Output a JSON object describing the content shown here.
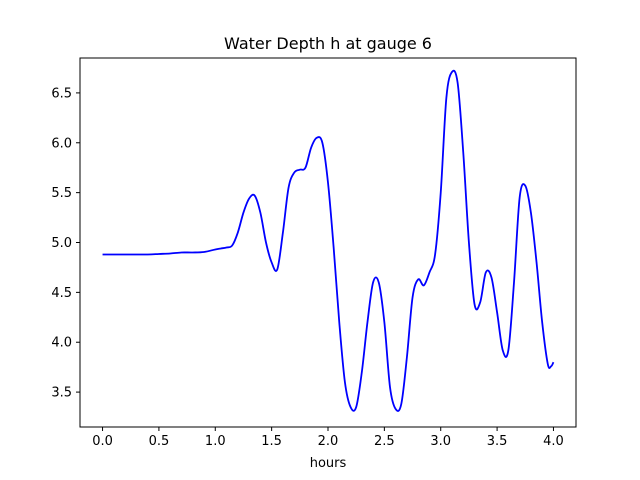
{
  "chart_data": {
    "type": "line",
    "title": "Water Depth h at gauge 6",
    "xlabel": "hours",
    "ylabel": "",
    "xlim": [
      -0.2,
      4.2
    ],
    "ylim": [
      3.15,
      6.85
    ],
    "x_ticks": [
      0.0,
      0.5,
      1.0,
      1.5,
      2.0,
      2.5,
      3.0,
      3.5,
      4.0
    ],
    "x_tick_labels": [
      "0.0",
      "0.5",
      "1.0",
      "1.5",
      "2.0",
      "2.5",
      "3.0",
      "3.5",
      "4.0"
    ],
    "y_ticks": [
      3.5,
      4.0,
      4.5,
      5.0,
      5.5,
      6.0,
      6.5
    ],
    "y_tick_labels": [
      "3.5",
      "4.0",
      "4.5",
      "5.0",
      "5.5",
      "6.0",
      "6.5"
    ],
    "grid": false,
    "series": [
      {
        "color": "#0000ff",
        "x": [
          0.0,
          0.2,
          0.4,
          0.5,
          0.6,
          0.7,
          0.8,
          0.9,
          1.0,
          1.05,
          1.1,
          1.15,
          1.2,
          1.25,
          1.3,
          1.35,
          1.4,
          1.45,
          1.5,
          1.55,
          1.6,
          1.65,
          1.7,
          1.75,
          1.8,
          1.85,
          1.9,
          1.95,
          2.0,
          2.05,
          2.1,
          2.15,
          2.2,
          2.25,
          2.3,
          2.35,
          2.4,
          2.45,
          2.5,
          2.55,
          2.6,
          2.65,
          2.7,
          2.75,
          2.8,
          2.85,
          2.9,
          2.95,
          3.0,
          3.05,
          3.1,
          3.15,
          3.2,
          3.25,
          3.3,
          3.35,
          3.4,
          3.45,
          3.5,
          3.55,
          3.6,
          3.65,
          3.7,
          3.75,
          3.8,
          3.85,
          3.9,
          3.95,
          3.98,
          4.0
        ],
        "y": [
          4.88,
          4.88,
          4.88,
          4.885,
          4.89,
          4.9,
          4.9,
          4.905,
          4.93,
          4.94,
          4.95,
          4.97,
          5.1,
          5.3,
          5.44,
          5.47,
          5.3,
          5.0,
          4.8,
          4.73,
          5.1,
          5.55,
          5.7,
          5.73,
          5.75,
          5.95,
          6.05,
          6.0,
          5.6,
          4.95,
          4.2,
          3.6,
          3.35,
          3.35,
          3.7,
          4.2,
          4.6,
          4.6,
          4.2,
          3.55,
          3.33,
          3.38,
          3.85,
          4.45,
          4.63,
          4.57,
          4.7,
          4.88,
          5.5,
          6.45,
          6.71,
          6.6,
          5.9,
          5.0,
          4.38,
          4.4,
          4.7,
          4.65,
          4.3,
          3.92,
          3.92,
          4.6,
          5.45,
          5.57,
          5.3,
          4.8,
          4.2,
          3.78,
          3.76,
          3.8
        ]
      }
    ]
  }
}
